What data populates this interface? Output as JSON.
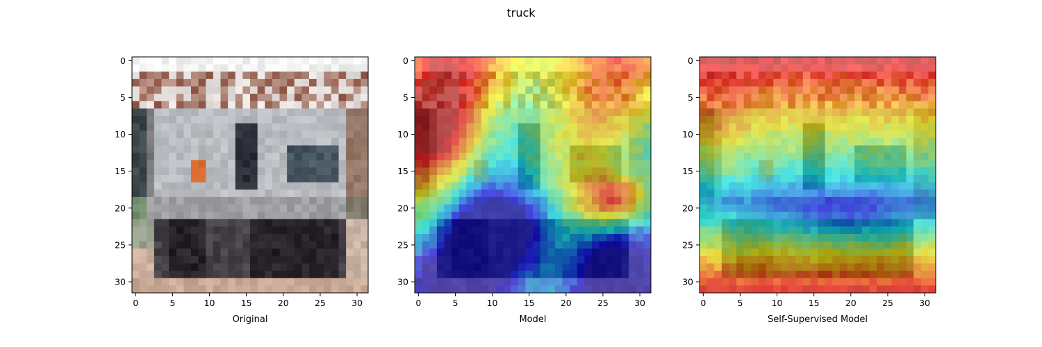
{
  "figure": {
    "title": "truck"
  },
  "chart_data": [
    {
      "type": "heatmap",
      "panel": "original-image",
      "xlabel": "Original",
      "ylabel": "",
      "xlim": [
        -0.5,
        31.5
      ],
      "ylim": [
        31.5,
        -0.5
      ],
      "xticks": [
        0,
        5,
        10,
        15,
        20,
        25,
        30
      ],
      "yticks": [
        0,
        5,
        10,
        15,
        20,
        25,
        30
      ],
      "grid": false
    },
    {
      "type": "heatmap",
      "panel": "model-saliency",
      "xlabel": "Model",
      "ylabel": "",
      "xlim": [
        -0.5,
        31.5
      ],
      "ylim": [
        31.5,
        -0.5
      ],
      "xticks": [
        0,
        5,
        10,
        15,
        20,
        25,
        30
      ],
      "yticks": [
        0,
        5,
        10,
        15,
        20,
        25,
        30
      ],
      "grid": false,
      "colormap": "jet"
    },
    {
      "type": "heatmap",
      "panel": "self-supervised-saliency",
      "xlabel": "Self-Supervised Model",
      "ylabel": "",
      "xlim": [
        -0.5,
        31.5
      ],
      "ylim": [
        31.5,
        -0.5
      ],
      "xticks": [
        0,
        5,
        10,
        15,
        20,
        25,
        30
      ],
      "yticks": [
        0,
        5,
        10,
        15,
        20,
        25,
        30
      ],
      "grid": false,
      "colormap": "jet"
    }
  ]
}
